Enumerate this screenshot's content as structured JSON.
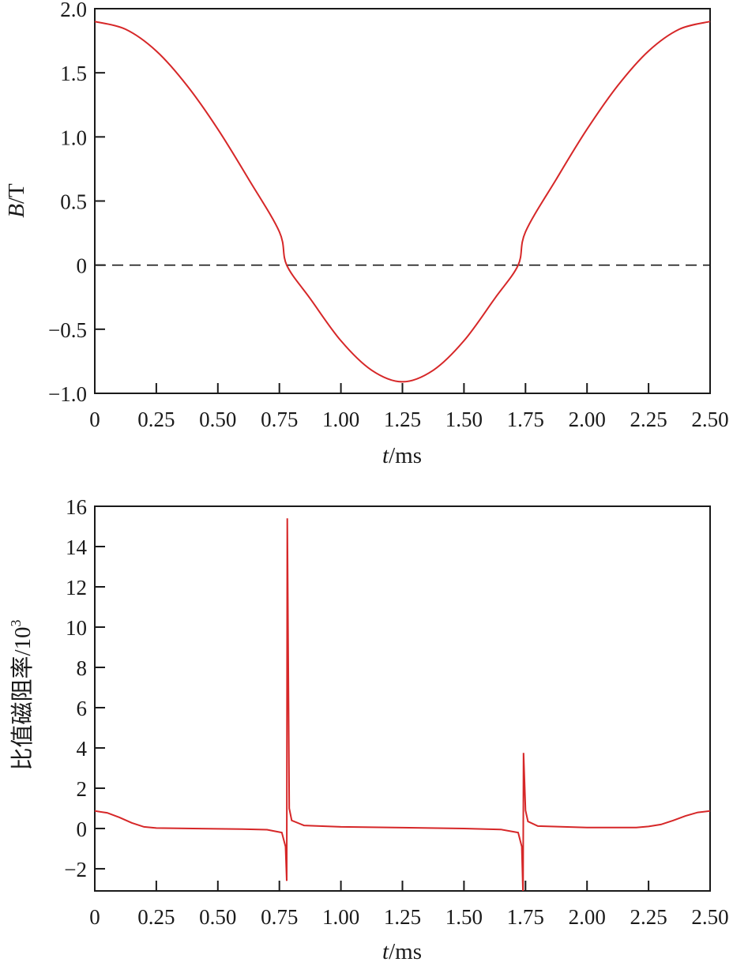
{
  "chart_data": [
    {
      "type": "line",
      "title": "",
      "xlabel": "t/ms",
      "xlabel_italic": "t",
      "xlabel_unit": "/ms",
      "ylabel": "B/T",
      "ylabel_italic": "B",
      "ylabel_unit": "/T",
      "xlim": [
        0,
        2.5
      ],
      "ylim": [
        -1.0,
        2.0
      ],
      "xticks": [
        "0",
        "0.25",
        "0.50",
        "0.75",
        "1.00",
        "1.25",
        "1.50",
        "1.75",
        "2.00",
        "2.25",
        "2.50"
      ],
      "yticks": [
        "2.0",
        "1.5",
        "1.0",
        "0.5",
        "0",
        "−0.5",
        "−1.0"
      ],
      "ytick_values": [
        2.0,
        1.5,
        1.0,
        0.5,
        0,
        -0.5,
        -1.0
      ],
      "grid": false,
      "reference_line": {
        "y": 0,
        "style": "dashed",
        "color": "#1a1a1a"
      },
      "series": [
        {
          "name": "B",
          "color": "#d62728",
          "x": [
            0,
            0.125,
            0.25,
            0.375,
            0.5,
            0.625,
            0.75,
            0.78,
            0.875,
            1.0,
            1.125,
            1.25,
            1.375,
            1.5,
            1.625,
            1.72,
            1.75,
            1.875,
            2.0,
            2.125,
            2.25,
            2.375,
            2.5
          ],
          "values": [
            1.9,
            1.84,
            1.67,
            1.4,
            1.06,
            0.67,
            0.26,
            0.0,
            -0.26,
            -0.59,
            -0.82,
            -0.91,
            -0.82,
            -0.59,
            -0.26,
            0.0,
            0.26,
            0.67,
            1.06,
            1.4,
            1.67,
            1.84,
            1.9
          ]
        }
      ]
    },
    {
      "type": "line",
      "title": "",
      "xlabel": "t/ms",
      "xlabel_italic": "t",
      "xlabel_unit": "/ms",
      "ylabel": "比值磁阻率/10^3",
      "ylabel_text": "比值磁阻率/10",
      "ylabel_sup": "3",
      "xlim": [
        0,
        2.5
      ],
      "ylim": [
        -3.1,
        16
      ],
      "xticks": [
        "0",
        "0.25",
        "0.50",
        "0.75",
        "1.00",
        "1.25",
        "1.50",
        "1.75",
        "2.00",
        "2.25",
        "2.50"
      ],
      "yticks": [
        "16",
        "14",
        "12",
        "10",
        "8",
        "6",
        "4",
        "2",
        "0",
        "−2"
      ],
      "ytick_values": [
        16,
        14,
        12,
        10,
        8,
        6,
        4,
        2,
        0,
        -2
      ],
      "grid": false,
      "series": [
        {
          "name": "relative reluctivity",
          "color": "#d62728",
          "x": [
            0,
            0.05,
            0.1,
            0.15,
            0.2,
            0.25,
            0.4,
            0.6,
            0.7,
            0.76,
            0.775,
            0.78,
            0.782,
            0.79,
            0.8,
            0.85,
            1.0,
            1.25,
            1.5,
            1.65,
            1.72,
            1.735,
            1.74,
            1.742,
            1.75,
            1.76,
            1.8,
            2.0,
            2.2,
            2.25,
            2.3,
            2.35,
            2.4,
            2.45,
            2.5
          ],
          "values": [
            0.87,
            0.78,
            0.55,
            0.28,
            0.08,
            0.02,
            0.0,
            -0.03,
            -0.06,
            -0.2,
            -0.9,
            -2.6,
            15.4,
            1.0,
            0.4,
            0.15,
            0.08,
            0.04,
            0.0,
            -0.05,
            -0.2,
            -0.9,
            -3.3,
            3.75,
            0.9,
            0.35,
            0.12,
            0.05,
            0.05,
            0.1,
            0.2,
            0.4,
            0.62,
            0.8,
            0.87
          ]
        }
      ]
    }
  ]
}
